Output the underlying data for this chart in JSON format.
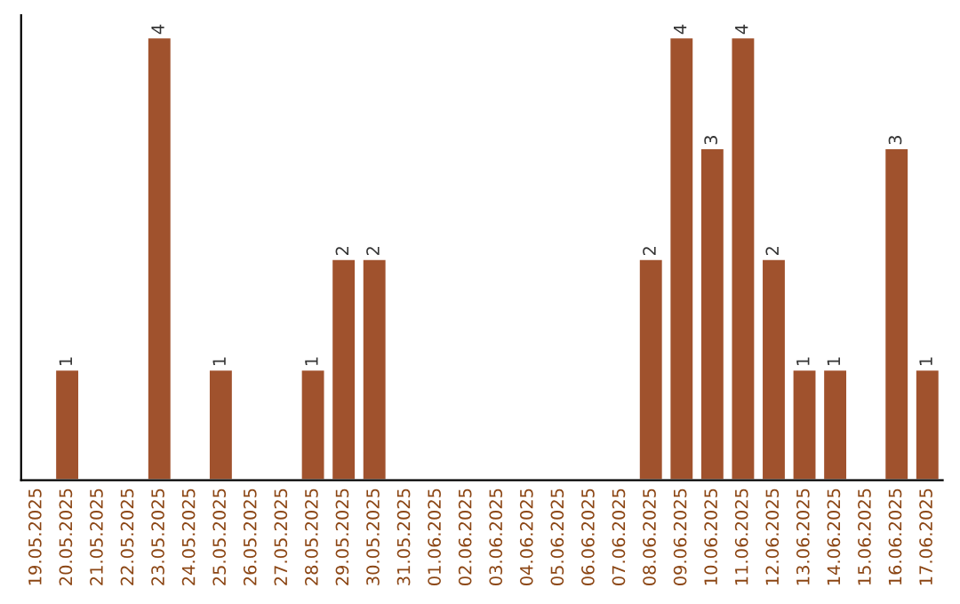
{
  "chart_data": {
    "type": "bar",
    "categories": [
      "19.05.2025",
      "20.05.2025",
      "21.05.2025",
      "22.05.2025",
      "23.05.2025",
      "24.05.2025",
      "25.05.2025",
      "26.05.2025",
      "27.05.2025",
      "28.05.2025",
      "29.05.2025",
      "30.05.2025",
      "31.05.2025",
      "01.06.2025",
      "02.06.2025",
      "03.06.2025",
      "04.06.2025",
      "05.06.2025",
      "06.06.2025",
      "07.06.2025",
      "08.06.2025",
      "09.06.2025",
      "10.06.2025",
      "11.06.2025",
      "12.06.2025",
      "13.06.2025",
      "14.06.2025",
      "15.06.2025",
      "16.06.2025",
      "17.06.2025"
    ],
    "values": [
      null,
      1,
      null,
      null,
      4,
      null,
      1,
      null,
      null,
      1,
      2,
      2,
      null,
      null,
      null,
      null,
      null,
      null,
      null,
      null,
      2,
      4,
      3,
      4,
      2,
      1,
      1,
      null,
      3,
      1
    ],
    "color": "#a0522d",
    "ylim": [
      0,
      4.2
    ],
    "data_labels": true,
    "tick_labels": "x",
    "grid": false,
    "legend": false
  }
}
